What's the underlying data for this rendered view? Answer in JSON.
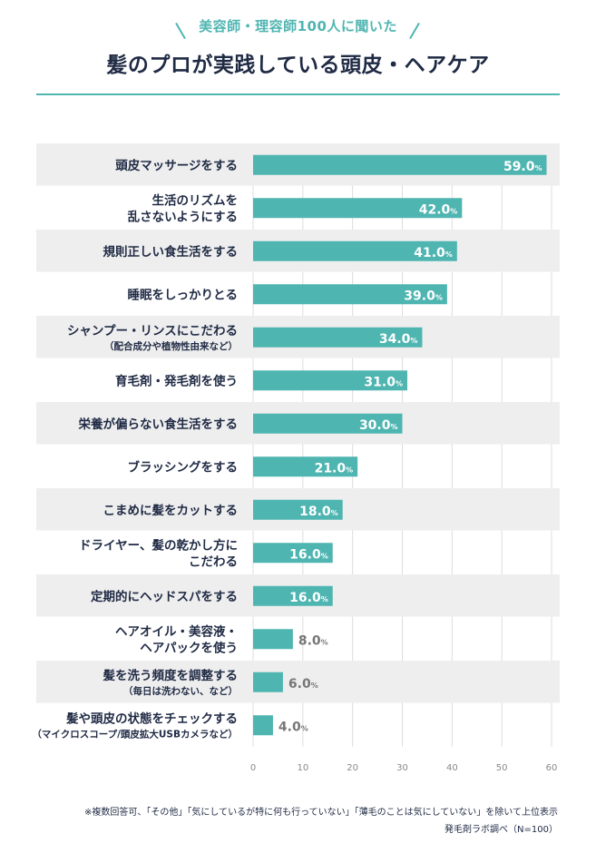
{
  "header": {
    "subtitle": "美容師・理容師100人に聞いた",
    "title": "髪のプロが実践している頭皮・ヘアケア"
  },
  "colors": {
    "accent": "#4fb5b1",
    "row_shade": "#eeeeee",
    "text": "#1f2a44",
    "value_outside": "#777777"
  },
  "chart_data": {
    "type": "bar",
    "orientation": "horizontal",
    "title": "髪のプロが実践している頭皮・ヘアケア",
    "categories": [
      {
        "label": [
          "頭皮マッサージをする"
        ],
        "note": ""
      },
      {
        "label": [
          "生活のリズムを",
          "乱さないようにする"
        ],
        "note": ""
      },
      {
        "label": [
          "規則正しい食生活をする"
        ],
        "note": ""
      },
      {
        "label": [
          "睡眠をしっかりとる"
        ],
        "note": ""
      },
      {
        "label": [
          "シャンプー・リンスにこだわる"
        ],
        "note": "（配合成分や植物性由来など）"
      },
      {
        "label": [
          "育毛剤・発毛剤を使う"
        ],
        "note": ""
      },
      {
        "label": [
          "栄養が偏らない食生活をする"
        ],
        "note": ""
      },
      {
        "label": [
          "ブラッシングをする"
        ],
        "note": ""
      },
      {
        "label": [
          "こまめに髪をカットする"
        ],
        "note": ""
      },
      {
        "label": [
          "ドライヤー、髪の乾かし方に",
          "こだわる"
        ],
        "note": ""
      },
      {
        "label": [
          "定期的にヘッドスパをする"
        ],
        "note": ""
      },
      {
        "label": [
          "ヘアオイル・美容液・",
          "ヘアパックを使う"
        ],
        "note": ""
      },
      {
        "label": [
          "髪を洗う頻度を調整する"
        ],
        "note": "（毎日は洗わない、など）"
      },
      {
        "label": [
          "髪や頭皮の状態をチェックする"
        ],
        "note": "（マイクロスコープ/頭皮拡大USBカメラなど）"
      }
    ],
    "values": [
      59.0,
      42.0,
      41.0,
      39.0,
      34.0,
      31.0,
      30.0,
      21.0,
      18.0,
      16.0,
      16.0,
      8.0,
      6.0,
      4.0
    ],
    "value_labels": [
      "59.0",
      "42.0",
      "41.0",
      "39.0",
      "34.0",
      "31.0",
      "30.0",
      "21.0",
      "18.0",
      "16.0",
      "16.0",
      "8.0",
      "6.0",
      "4.0"
    ],
    "unit": "%",
    "xlim": [
      0,
      60
    ],
    "xticks": [
      0,
      10,
      20,
      30,
      40,
      50,
      60
    ],
    "xlabel": "",
    "ylabel": ""
  },
  "footnote": {
    "note": "※複数回答可、「その他」「気にしているが特に何も行っていない」「薄毛のことは気にしていない」を除いて上位表示",
    "source": "発毛剤ラボ調べ（N=100）"
  }
}
